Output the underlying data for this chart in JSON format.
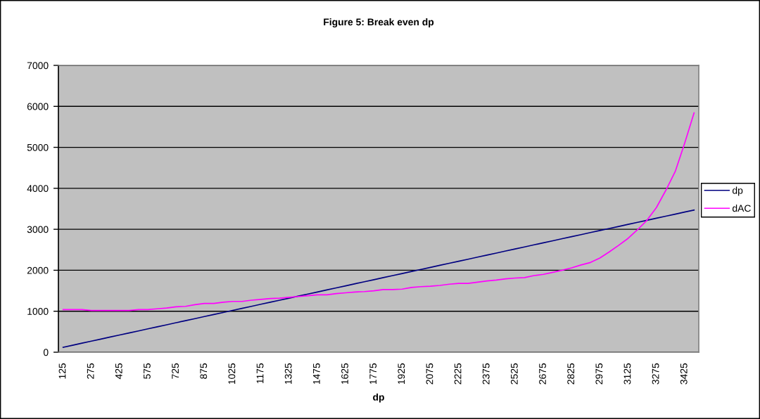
{
  "chart_data": {
    "type": "line",
    "title": "Figure 5: Break even dp",
    "xlabel": "dp",
    "categories": [
      "125",
      null,
      null,
      "275",
      null,
      null,
      "425",
      null,
      null,
      "575",
      null,
      null,
      "725",
      null,
      null,
      "875",
      null,
      null,
      "1025",
      null,
      null,
      "1175",
      null,
      null,
      "1325",
      null,
      null,
      "1475",
      null,
      null,
      "1625",
      null,
      null,
      "1775",
      null,
      null,
      "1925",
      null,
      null,
      "2075",
      null,
      null,
      "2225",
      null,
      null,
      "2375",
      null,
      null,
      "2525",
      null,
      null,
      "2675",
      null,
      null,
      "2825",
      null,
      null,
      "2975",
      null,
      null,
      "3125",
      null,
      null,
      "3275",
      null,
      null,
      "3425",
      null
    ],
    "series": [
      {
        "name": "dp",
        "color": "#000080",
        "values": [
          120,
          170,
          220,
          270,
          320,
          370,
          420,
          470,
          520,
          570,
          620,
          670,
          720,
          770,
          820,
          870,
          920,
          970,
          1020,
          1070,
          1120,
          1170,
          1220,
          1270,
          1320,
          1370,
          1420,
          1470,
          1520,
          1570,
          1620,
          1670,
          1720,
          1770,
          1820,
          1870,
          1920,
          1970,
          2020,
          2070,
          2120,
          2170,
          2220,
          2270,
          2320,
          2370,
          2420,
          2470,
          2520,
          2570,
          2620,
          2670,
          2720,
          2770,
          2820,
          2870,
          2920,
          2970,
          3020,
          3070,
          3120,
          3170,
          3220,
          3270,
          3320,
          3370,
          3420,
          3470
        ]
      },
      {
        "name": "dAC",
        "color": "#ff00ff",
        "values": [
          1040,
          1040,
          1040,
          1020,
          1020,
          1020,
          1020,
          1020,
          1040,
          1040,
          1060,
          1080,
          1110,
          1120,
          1160,
          1190,
          1190,
          1220,
          1240,
          1240,
          1270,
          1290,
          1310,
          1320,
          1340,
          1360,
          1380,
          1400,
          1400,
          1430,
          1450,
          1470,
          1480,
          1500,
          1530,
          1530,
          1540,
          1580,
          1600,
          1610,
          1630,
          1660,
          1680,
          1680,
          1710,
          1740,
          1760,
          1790,
          1810,
          1820,
          1870,
          1900,
          1950,
          2000,
          2060,
          2130,
          2190,
          2300,
          2450,
          2610,
          2780,
          2990,
          3220,
          3530,
          3950,
          4410,
          5100,
          5840
        ]
      }
    ],
    "ylim": [
      0,
      7000
    ],
    "yticks": [
      0,
      1000,
      2000,
      3000,
      4000,
      5000,
      6000,
      7000
    ],
    "grid": "y",
    "legend": "right",
    "line_style": "solid"
  }
}
